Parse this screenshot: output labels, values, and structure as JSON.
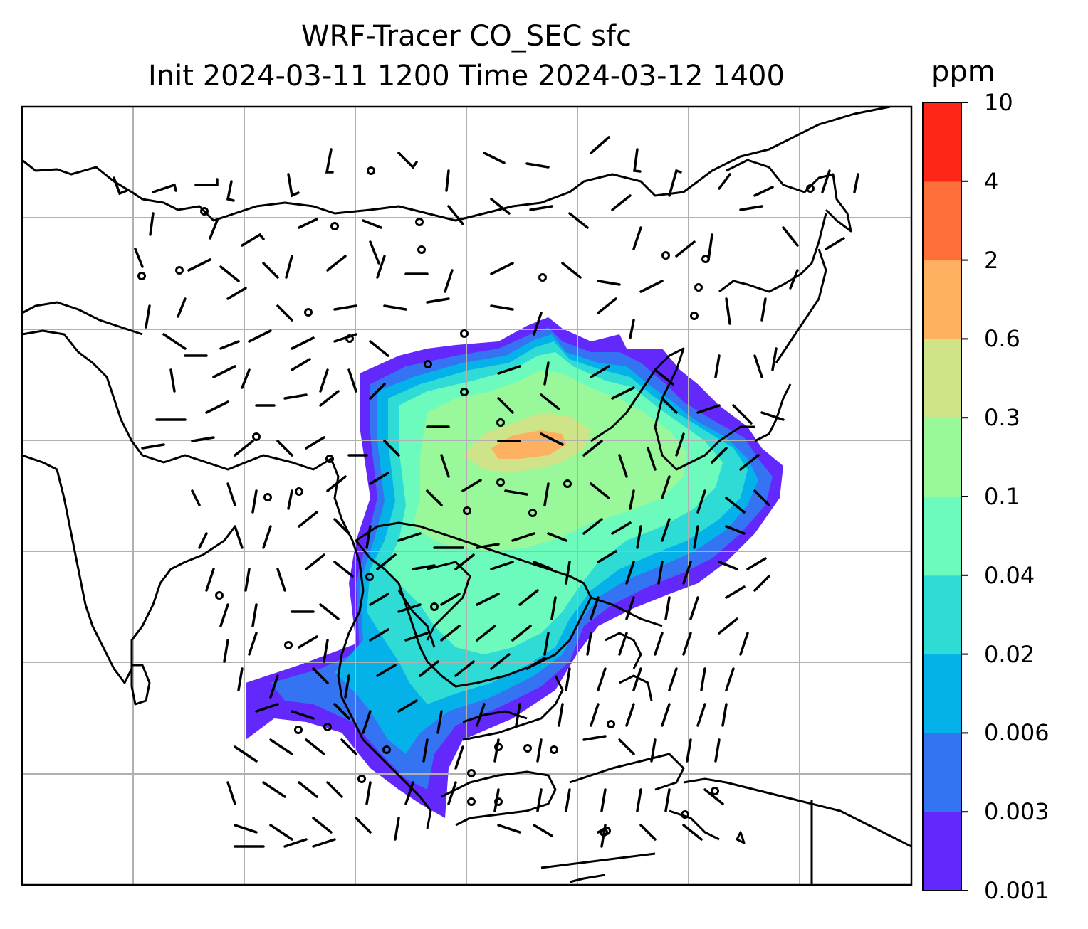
{
  "title": {
    "line1": "WRF-Tracer CO_SEC sfc",
    "line2": "Init 2024-03-11 1200 Time 2024-03-12 1400"
  },
  "colorbar": {
    "unit": "ppm",
    "ticks": [
      "0.001",
      "0.003",
      "0.006",
      "0.02",
      "0.04",
      "0.1",
      "0.3",
      "0.6",
      "2",
      "4",
      "10"
    ],
    "colors": [
      "#6328fb",
      "#3474f2",
      "#05b1e9",
      "#2fdcd5",
      "#6cfbbd",
      "#99f899",
      "#cfe389",
      "#fdb05f",
      "#fe6f3a",
      "#fe2717"
    ]
  },
  "map": {
    "field": "CO_SEC tracer concentration",
    "overlay": "wind barbs",
    "gridlines": true,
    "coastlines": true
  }
}
